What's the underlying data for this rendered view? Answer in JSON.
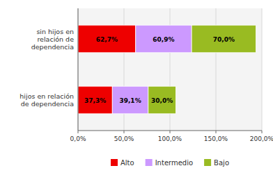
{
  "chart_data": {
    "type": "bar",
    "orientation": "horizontal",
    "stacked": true,
    "categories": [
      "hijos en relación\nde dependencia",
      "sin hijos en\nrelación de\ndependencia"
    ],
    "series": [
      {
        "name": "Alto",
        "color": "#ee0000",
        "values": [
          37.3,
          62.7
        ],
        "value_labels": [
          "37,3%",
          "62,7%"
        ]
      },
      {
        "name": "Intermedio",
        "color": "#cc99ff",
        "values": [
          39.1,
          60.9
        ],
        "value_labels": [
          "39,1%",
          "60,9%"
        ]
      },
      {
        "name": "Bajo",
        "color": "#99bb22",
        "values": [
          30.0,
          70.0
        ],
        "value_labels": [
          "30,0%",
          "70,0%"
        ]
      }
    ],
    "xlim": [
      0,
      200
    ],
    "xticks": [
      {
        "value": 0,
        "label": "0,0%"
      },
      {
        "value": 50,
        "label": "50,0%"
      },
      {
        "value": 100,
        "label": "100,0%"
      },
      {
        "value": 150,
        "label": "150,0%"
      },
      {
        "value": 200,
        "label": "200,0%"
      }
    ],
    "grid": true,
    "legend": "bottom",
    "data_labels": true
  }
}
